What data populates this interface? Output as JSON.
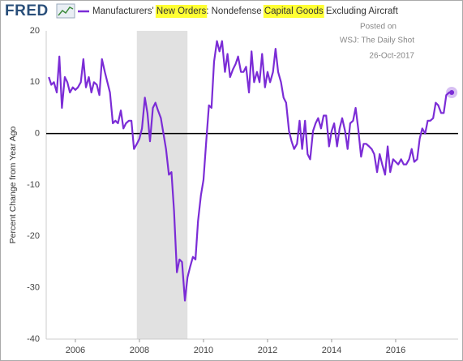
{
  "chart_data": {
    "type": "line",
    "logo": "FRED",
    "x": [
      2005.17,
      2005.25,
      2005.33,
      2005.42,
      2005.5,
      2005.58,
      2005.67,
      2005.75,
      2005.83,
      2005.92,
      2006,
      2006.08,
      2006.17,
      2006.25,
      2006.33,
      2006.42,
      2006.5,
      2006.58,
      2006.67,
      2006.75,
      2006.83,
      2006.92,
      2007,
      2007.08,
      2007.17,
      2007.25,
      2007.33,
      2007.42,
      2007.5,
      2007.58,
      2007.67,
      2007.75,
      2007.83,
      2007.92,
      2008,
      2008.08,
      2008.17,
      2008.25,
      2008.33,
      2008.42,
      2008.5,
      2008.58,
      2008.67,
      2008.75,
      2008.83,
      2008.92,
      2009,
      2009.08,
      2009.17,
      2009.25,
      2009.33,
      2009.42,
      2009.5,
      2009.58,
      2009.67,
      2009.75,
      2009.83,
      2009.92,
      2010,
      2010.08,
      2010.17,
      2010.25,
      2010.33,
      2010.42,
      2010.5,
      2010.58,
      2010.67,
      2010.75,
      2010.83,
      2010.92,
      2011,
      2011.08,
      2011.17,
      2011.25,
      2011.33,
      2011.42,
      2011.5,
      2011.58,
      2011.67,
      2011.75,
      2011.83,
      2011.92,
      2012,
      2012.08,
      2012.17,
      2012.25,
      2012.33,
      2012.42,
      2012.5,
      2012.58,
      2012.67,
      2012.75,
      2012.83,
      2012.92,
      2013,
      2013.08,
      2013.17,
      2013.25,
      2013.33,
      2013.42,
      2013.5,
      2013.58,
      2013.67,
      2013.75,
      2013.83,
      2013.92,
      2014,
      2014.08,
      2014.17,
      2014.25,
      2014.33,
      2014.42,
      2014.5,
      2014.58,
      2014.67,
      2014.75,
      2014.83,
      2014.92,
      2015,
      2015.08,
      2015.17,
      2015.25,
      2015.33,
      2015.42,
      2015.5,
      2015.58,
      2015.67,
      2015.75,
      2015.83,
      2015.92,
      2016,
      2016.08,
      2016.17,
      2016.25,
      2016.33,
      2016.42,
      2016.5,
      2016.58,
      2016.67,
      2016.75,
      2016.83,
      2016.92,
      2017,
      2017.08,
      2017.17,
      2017.25,
      2017.33,
      2017.42,
      2017.5,
      2017.58,
      2017.67,
      2017.75
    ],
    "series": [
      {
        "name": "Manufacturers' New Orders: Nondefense Capital Goods Excluding Aircraft",
        "color": "#7b2cd6",
        "values": [
          11,
          9.5,
          10,
          8,
          15,
          5,
          11,
          10,
          8,
          9,
          8.5,
          9,
          10,
          14.5,
          9,
          11,
          8,
          10,
          9.5,
          7.5,
          14.5,
          12,
          10,
          8,
          2,
          2.5,
          2,
          4.5,
          1,
          2,
          2.5,
          2.5,
          -3,
          -2,
          -1,
          1,
          7,
          4,
          -1.5,
          5,
          6,
          4.5,
          3,
          0,
          -3,
          -8,
          -7.5,
          -15,
          -27,
          -24.5,
          -25,
          -32.5,
          -28,
          -26,
          -24,
          -24.5,
          -17,
          -12,
          -9,
          -2,
          5.5,
          5,
          14,
          18,
          16,
          18,
          12,
          15.5,
          11,
          12.5,
          13.5,
          15,
          12,
          12,
          13,
          8,
          16,
          10,
          12,
          10,
          15.5,
          9,
          12,
          10,
          12,
          16.5,
          12,
          10,
          7,
          6,
          0.5,
          -1.5,
          -3,
          -2,
          2.5,
          -3,
          2.5,
          -4,
          -5,
          0.5,
          2,
          3,
          1,
          3.5,
          3.5,
          -2.5,
          0.5,
          2,
          -2.5,
          1,
          3,
          0.5,
          -3,
          2,
          2.5,
          5,
          1,
          -4.5,
          -2,
          -2,
          -2.5,
          -3,
          -4,
          -7.5,
          -4,
          -6,
          -8,
          -2.5,
          -7.5,
          -5,
          -5.5,
          -6,
          -5,
          -6,
          -6,
          -5,
          -3,
          -5.5,
          -5,
          -1,
          1,
          0,
          2.5,
          2.5,
          3,
          6,
          5.5,
          4,
          4,
          7.5,
          8,
          8
        ]
      }
    ],
    "xlim": [
      2005.09,
      2017.95
    ],
    "xticks": [
      2006,
      2008,
      2010,
      2012,
      2014,
      2016
    ],
    "ylim": [
      -40,
      20
    ],
    "yticks": [
      20,
      10,
      0,
      -10,
      -20,
      -30,
      -40
    ],
    "ylabel": "Percent Change from Year Ago",
    "recession": [
      2007.92,
      2009.5
    ],
    "grid": false,
    "annotations": [
      "Posted on",
      "WSJ: The Daily Shot",
      "26-Oct-2017"
    ]
  }
}
